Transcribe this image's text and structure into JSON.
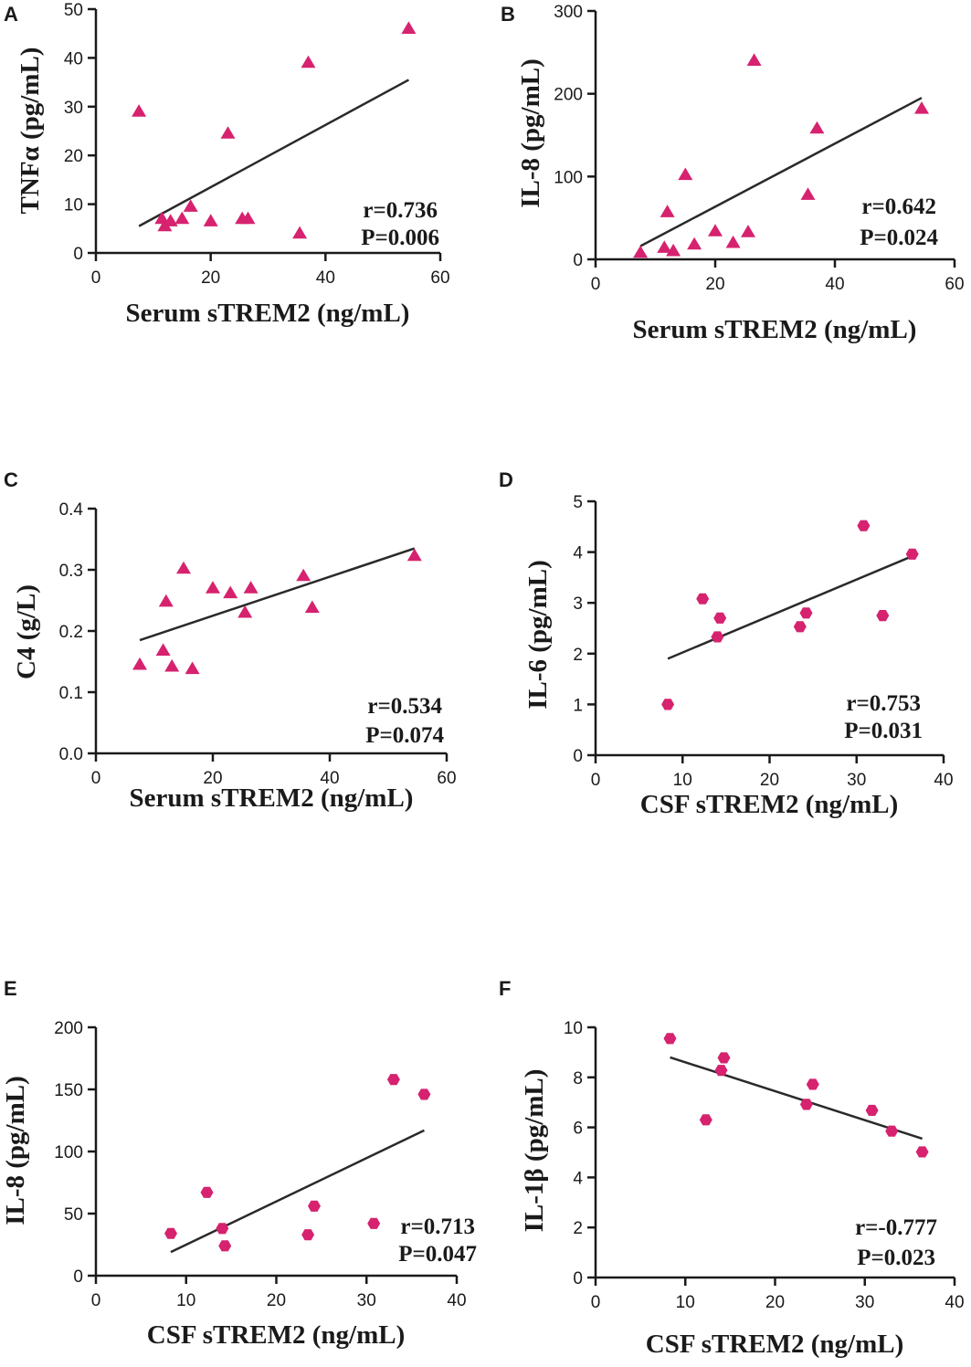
{
  "colors": {
    "marker": "#d6226f",
    "line": "#2a2a2a",
    "axis": "#1a1a1a"
  },
  "chart_data": [
    {
      "panel": "A",
      "type": "scatter",
      "marker": "triangle",
      "xlabel": "Serum sTREM2 (ng/mL)",
      "ylabel": "TNFα (pg/mL)",
      "xlim": [
        0,
        60
      ],
      "ylim": [
        0,
        50
      ],
      "xticks": [
        0,
        20,
        40,
        60
      ],
      "yticks": [
        0,
        10,
        20,
        30,
        40,
        50
      ],
      "x": [
        7.5,
        11.5,
        12,
        13,
        15,
        16.5,
        20,
        23,
        25.5,
        26.5,
        35.5,
        37,
        54.5
      ],
      "y": [
        29,
        7,
        5.5,
        6.5,
        7,
        9.5,
        6.5,
        24.5,
        7,
        7,
        4,
        39,
        46
      ],
      "fit": {
        "x1": 7.5,
        "y1": 5.5,
        "x2": 54.5,
        "y2": 35.5
      },
      "stats": {
        "r": "r=0.736",
        "p": "P=0.006"
      }
    },
    {
      "panel": "B",
      "type": "scatter",
      "marker": "triangle",
      "xlabel": "Serum sTREM2 (ng/mL)",
      "ylabel": "IL-8 (pg/mL)",
      "xlim": [
        0,
        60
      ],
      "ylim": [
        0,
        300
      ],
      "xticks": [
        0,
        20,
        40,
        60
      ],
      "yticks": [
        0,
        100,
        200,
        300
      ],
      "x": [
        7.5,
        11.5,
        12,
        13,
        15,
        16.5,
        20,
        23,
        25.5,
        26.5,
        35.5,
        37,
        54.5
      ],
      "y": [
        8,
        14,
        57,
        10,
        102,
        18,
        34,
        20,
        33,
        240,
        78,
        158,
        182
      ],
      "fit": {
        "x1": 7.5,
        "y1": 16,
        "x2": 54.5,
        "y2": 195
      },
      "stats": {
        "r": "r=0.642",
        "p": "P=0.024"
      }
    },
    {
      "panel": "C",
      "type": "scatter",
      "marker": "triangle",
      "xlabel": "Serum sTREM2 (ng/mL)",
      "ylabel": "C4 (g/L)",
      "xlim": [
        0,
        60
      ],
      "ylim": [
        0,
        0.4
      ],
      "xticks": [
        0,
        20,
        40,
        60
      ],
      "yticks": [
        0.0,
        0.1,
        0.2,
        0.3,
        0.4
      ],
      "ytick_labels": [
        "0.0",
        "0.1",
        "0.2",
        "0.3",
        "0.4"
      ],
      "x": [
        7.5,
        11.5,
        12,
        13,
        15,
        16.5,
        20,
        23,
        25.5,
        26.5,
        35.5,
        37,
        54.5
      ],
      "y": [
        0.145,
        0.168,
        0.248,
        0.142,
        0.302,
        0.138,
        0.27,
        0.262,
        0.23,
        0.27,
        0.29,
        0.238,
        0.323
      ],
      "fit": {
        "x1": 7.5,
        "y1": 0.185,
        "x2": 54.5,
        "y2": 0.335
      },
      "stats": {
        "r": "r=0.534",
        "p": "P=0.074"
      }
    },
    {
      "panel": "D",
      "type": "scatter",
      "marker": "hexagon",
      "xlabel": "CSF sTREM2 (ng/mL)",
      "ylabel": "IL-6 (pg/mL)",
      "xlim": [
        0,
        40
      ],
      "ylim": [
        0,
        5
      ],
      "xticks": [
        0,
        10,
        20,
        30,
        40
      ],
      "yticks": [
        0,
        1,
        2,
        3,
        4,
        5
      ],
      "x": [
        8.3,
        12.3,
        14,
        14.3,
        23.5,
        24.2,
        30.8,
        33,
        36.4
      ],
      "y": [
        1.0,
        3.08,
        2.33,
        2.7,
        2.53,
        2.8,
        4.52,
        2.75,
        3.96
      ],
      "fit": {
        "x1": 8.3,
        "y1": 1.9,
        "x2": 36.4,
        "y2": 3.92
      },
      "stats": {
        "r": "r=0.753",
        "p": "P=0.031"
      }
    },
    {
      "panel": "E",
      "type": "scatter",
      "marker": "hexagon",
      "xlabel": "CSF sTREM2 (ng/mL)",
      "ylabel": "IL-8 (pg/mL)",
      "xlim": [
        0,
        40
      ],
      "ylim": [
        0,
        200
      ],
      "xticks": [
        0,
        10,
        20,
        30,
        40
      ],
      "yticks": [
        0,
        50,
        100,
        150,
        200
      ],
      "x": [
        8.3,
        12.3,
        14,
        14.3,
        23.5,
        24.2,
        30.8,
        33,
        36.4
      ],
      "y": [
        34,
        67,
        38,
        24,
        33,
        56,
        42,
        158,
        146
      ],
      "fit": {
        "x1": 8.3,
        "y1": 19,
        "x2": 36.4,
        "y2": 117
      },
      "stats": {
        "r": "r=0.713",
        "p": "P=0.047"
      }
    },
    {
      "panel": "F",
      "type": "scatter",
      "marker": "hexagon",
      "xlabel": "CSF sTREM2 (ng/mL)",
      "ylabel": "IL-1β (pg/mL)",
      "xlim": [
        0,
        40
      ],
      "ylim": [
        0,
        10
      ],
      "xticks": [
        0,
        10,
        20,
        30,
        40
      ],
      "yticks": [
        0,
        2,
        4,
        6,
        8,
        10
      ],
      "x": [
        8.3,
        12.3,
        14,
        14.3,
        23.5,
        24.2,
        30.8,
        33,
        36.4
      ],
      "y": [
        9.55,
        6.3,
        8.28,
        8.78,
        6.92,
        7.72,
        6.68,
        5.85,
        5.02
      ],
      "fit": {
        "x1": 8.3,
        "y1": 8.8,
        "x2": 36.4,
        "y2": 5.55
      },
      "stats": {
        "r": "r=-0.777",
        "p": "P=0.023"
      }
    }
  ]
}
